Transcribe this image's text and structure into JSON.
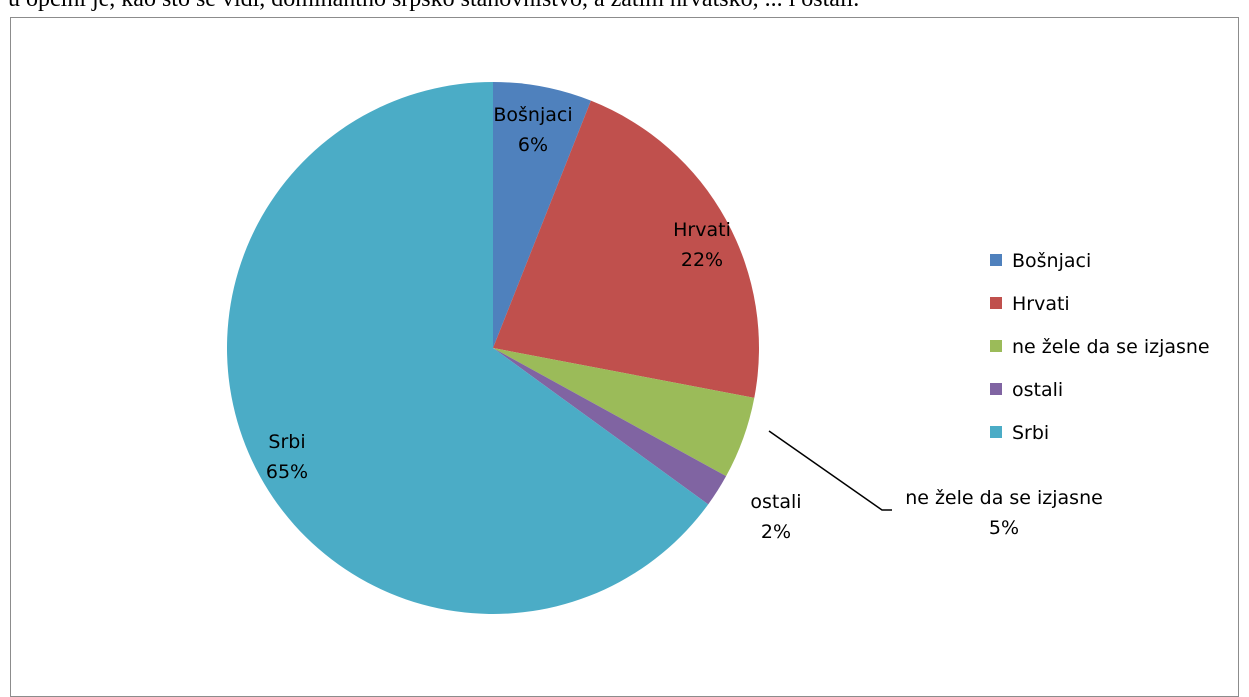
{
  "document": {
    "top_line": "u općini je, kao što se vidi, dominantno srpsko stanovništvo, a zatim hrvatsko, ... i ostali."
  },
  "chart_data": {
    "type": "pie",
    "title": "",
    "categories": [
      "Bošnjaci",
      "Hrvati",
      "ne žele da se izjasne",
      "ostali",
      "Srbi"
    ],
    "values": [
      6,
      22,
      5,
      2,
      65
    ],
    "value_labels": [
      "6%",
      "22%",
      "5%",
      "2%",
      "65%"
    ],
    "colors": [
      "#4f81bd",
      "#c0504d",
      "#9bbb59",
      "#8064a2",
      "#4bacc6"
    ],
    "start_angle": "12 o'clock",
    "direction": "clockwise",
    "legend": {
      "position": "right",
      "entries": [
        "Bošnjaci",
        "Hrvati",
        "ne žele da se izjasne",
        "ostali",
        "Srbi"
      ]
    }
  }
}
